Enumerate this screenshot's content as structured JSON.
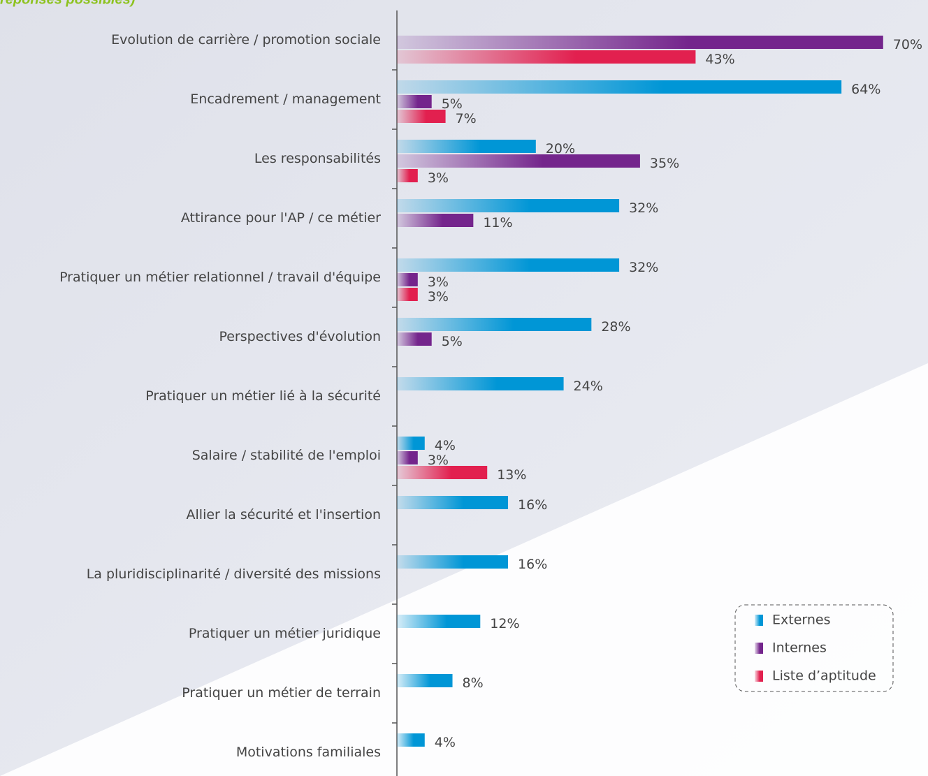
{
  "chart_data": {
    "type": "hbar",
    "subtitle": "réponses possibles)",
    "categories": [
      "Evolution de carrière / promotion sociale",
      "Encadrement / management",
      "Les responsabilités",
      "Attirance pour l'AP / ce métier",
      "Pratiquer un métier relationnel / travail d'équipe",
      "Perspectives d'évolution",
      "Pratiquer un métier lié à la sécurité",
      "Salaire / stabilité de l'emploi",
      "Allier la sécurité et l'insertion",
      "La pluridisciplinarité / diversité des missions",
      "Pratiquer un métier juridique",
      "Pratiquer un métier de terrain",
      "Motivations familiales"
    ],
    "series": [
      {
        "name": "Externes",
        "color": "#0096d6",
        "values": [
          null,
          64,
          20,
          32,
          32,
          28,
          24,
          4,
          16,
          16,
          12,
          8,
          4
        ],
        "value_labels": [
          null,
          "64%",
          "20%",
          "32%",
          "32%",
          "28%",
          "24%",
          "4%",
          "16%",
          "16%",
          "12%",
          "8%",
          "4%"
        ]
      },
      {
        "name": "Internes",
        "color": "#74258c",
        "values": [
          70,
          5,
          35,
          11,
          3,
          5,
          null,
          3,
          null,
          null,
          null,
          null,
          null
        ],
        "value_labels": [
          "70%",
          "5%",
          "35%",
          "11%",
          "3%",
          "5%",
          null,
          "3%",
          null,
          null,
          null,
          null,
          null
        ]
      },
      {
        "name": "Liste d’aptitude",
        "color": "#e2204f",
        "values": [
          43,
          7,
          3,
          null,
          3,
          null,
          null,
          13,
          null,
          null,
          null,
          null,
          null
        ],
        "value_labels": [
          "43%",
          "7%",
          "3%",
          null,
          "3%",
          null,
          null,
          "13%",
          null,
          null,
          null,
          null,
          null
        ]
      }
    ],
    "legend": "bottom-right"
  }
}
